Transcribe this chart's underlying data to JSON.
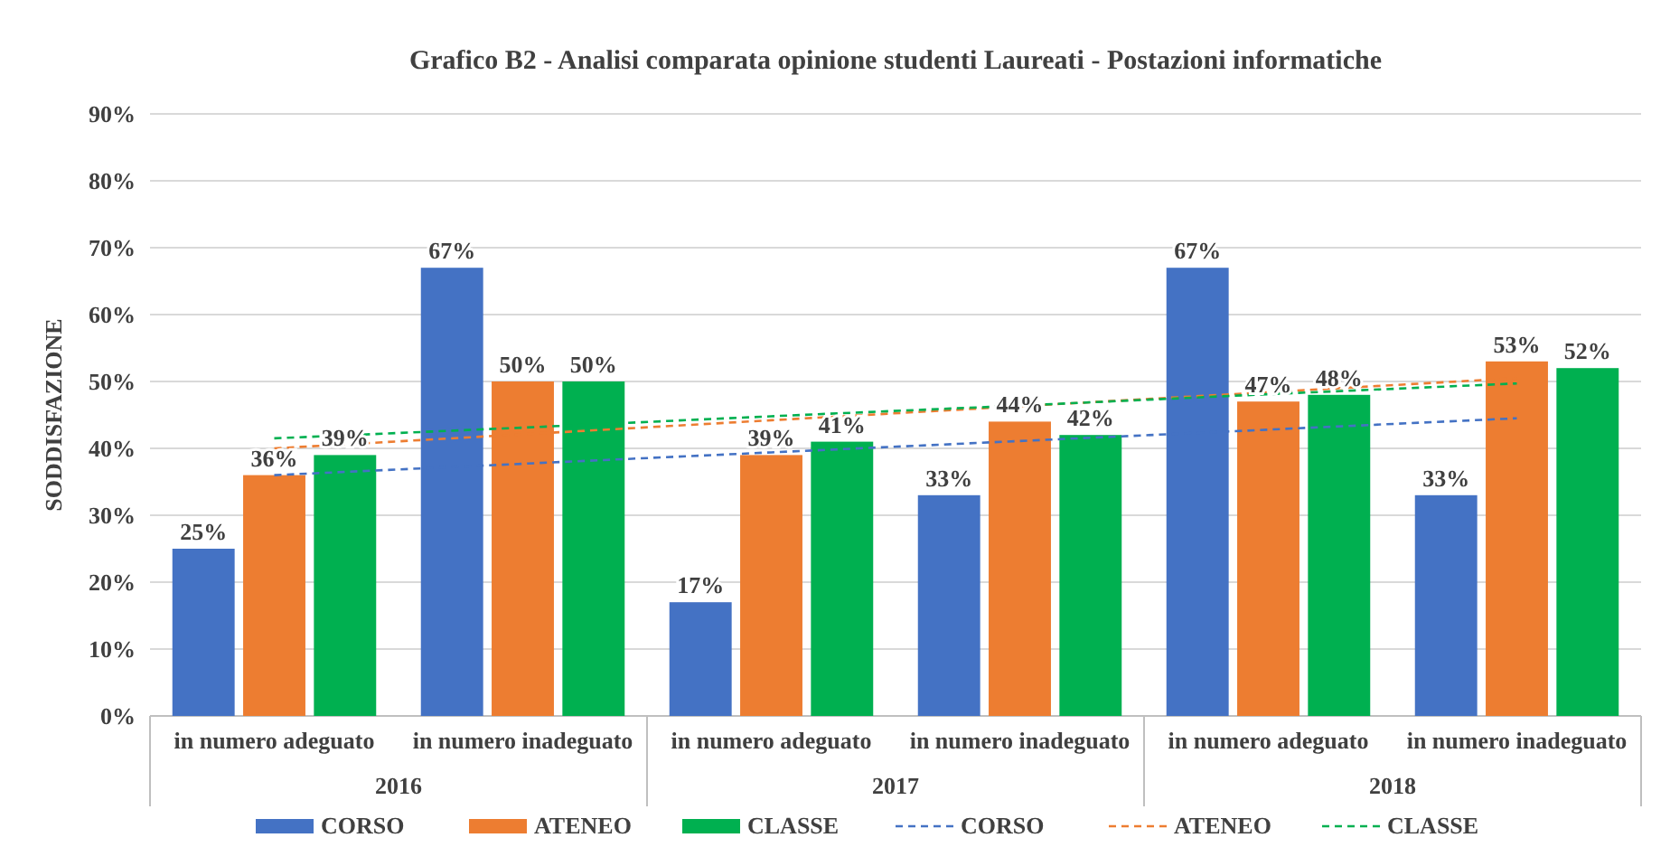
{
  "chart_data": {
    "type": "bar",
    "title": "Grafico B2 - Analisi comparata opinione studenti Laureati - Postazioni informatiche",
    "ylabel": "SODDISFAZIONE",
    "categories": [
      "in numero adeguato",
      "in numero inadeguato",
      "in numero adeguato",
      "in numero inadeguato",
      "in numero adeguato",
      "in numero inadeguato"
    ],
    "annotations": [
      "2016",
      "2017",
      "2018"
    ],
    "series": [
      {
        "name": "CORSO",
        "color": "#4472c4",
        "values": [
          25,
          67,
          17,
          33,
          67,
          33
        ],
        "value_labels": [
          "25%",
          "67%",
          "17%",
          "33%",
          "67%",
          "33%"
        ]
      },
      {
        "name": "ATENEO",
        "color": "#ed7d31",
        "values": [
          36,
          50,
          39,
          44,
          47,
          53
        ],
        "value_labels": [
          "36%",
          "50%",
          "39%",
          "44%",
          "47%",
          "53%"
        ]
      },
      {
        "name": "CLASSE",
        "color": "#00b050",
        "values": [
          39,
          50,
          41,
          42,
          48,
          52
        ],
        "value_labels": [
          "39%",
          "50%",
          "41%",
          "42%",
          "48%",
          "52%"
        ]
      },
      {
        "name": "CORSO",
        "type": "line",
        "line_style": "dashed",
        "color": "#4472c4",
        "values": [
          36,
          37.7,
          39.4,
          41.1,
          42.8,
          44.5
        ]
      },
      {
        "name": "ATENEO",
        "type": "line",
        "line_style": "dashed",
        "color": "#ed7d31",
        "values": [
          40,
          42.1,
          44.2,
          46.3,
          48.4,
          50.5
        ]
      },
      {
        "name": "CLASSE",
        "type": "line",
        "line_style": "dashed",
        "color": "#00b050",
        "values": [
          41.5,
          43.1,
          44.8,
          46.4,
          48.1,
          49.7
        ]
      }
    ],
    "ylim": [
      0,
      90
    ],
    "yticks": [
      {
        "value": 0,
        "label": "0%"
      },
      {
        "value": 10,
        "label": "10%"
      },
      {
        "value": 20,
        "label": "20%"
      },
      {
        "value": 30,
        "label": "30%"
      },
      {
        "value": 40,
        "label": "40%"
      },
      {
        "value": 50,
        "label": "50%"
      },
      {
        "value": 60,
        "label": "60%"
      },
      {
        "value": 70,
        "label": "70%"
      },
      {
        "value": 80,
        "label": "80%"
      },
      {
        "value": 90,
        "label": "90%"
      }
    ],
    "grid": "y",
    "legend": "bottom"
  }
}
